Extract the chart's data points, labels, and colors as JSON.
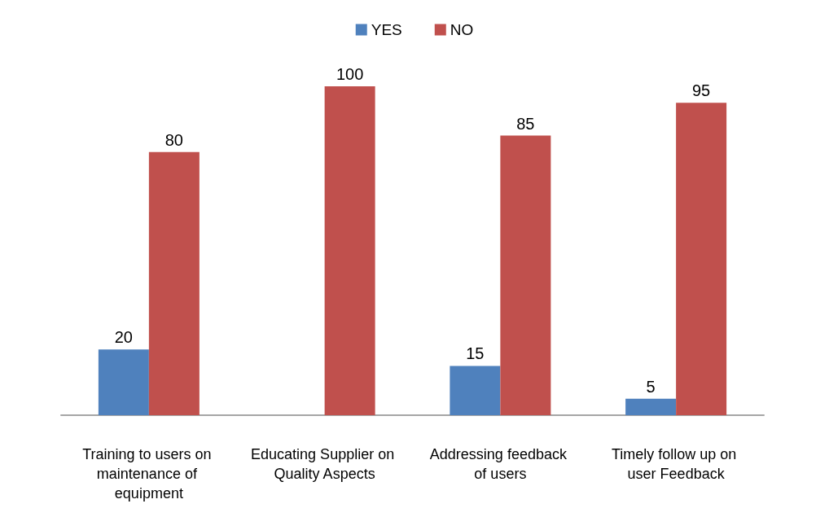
{
  "chart_data": {
    "type": "bar",
    "categories": [
      "Training to users on maintenance of equipment",
      "Educating Supplier on Quality Aspects",
      "Addressing feedback of users",
      "Timely follow up on user Feedback"
    ],
    "series": [
      {
        "name": "YES",
        "color": "#4f81bd",
        "values": [
          20,
          0,
          15,
          5
        ],
        "value_labels": [
          "20",
          null,
          "15",
          "5"
        ]
      },
      {
        "name": "NO",
        "color": "#c0504d",
        "values": [
          80,
          100,
          85,
          95
        ],
        "value_labels": [
          "80",
          "100",
          "85",
          "95"
        ]
      }
    ],
    "legend": "top",
    "tick_labels": "x"
  }
}
